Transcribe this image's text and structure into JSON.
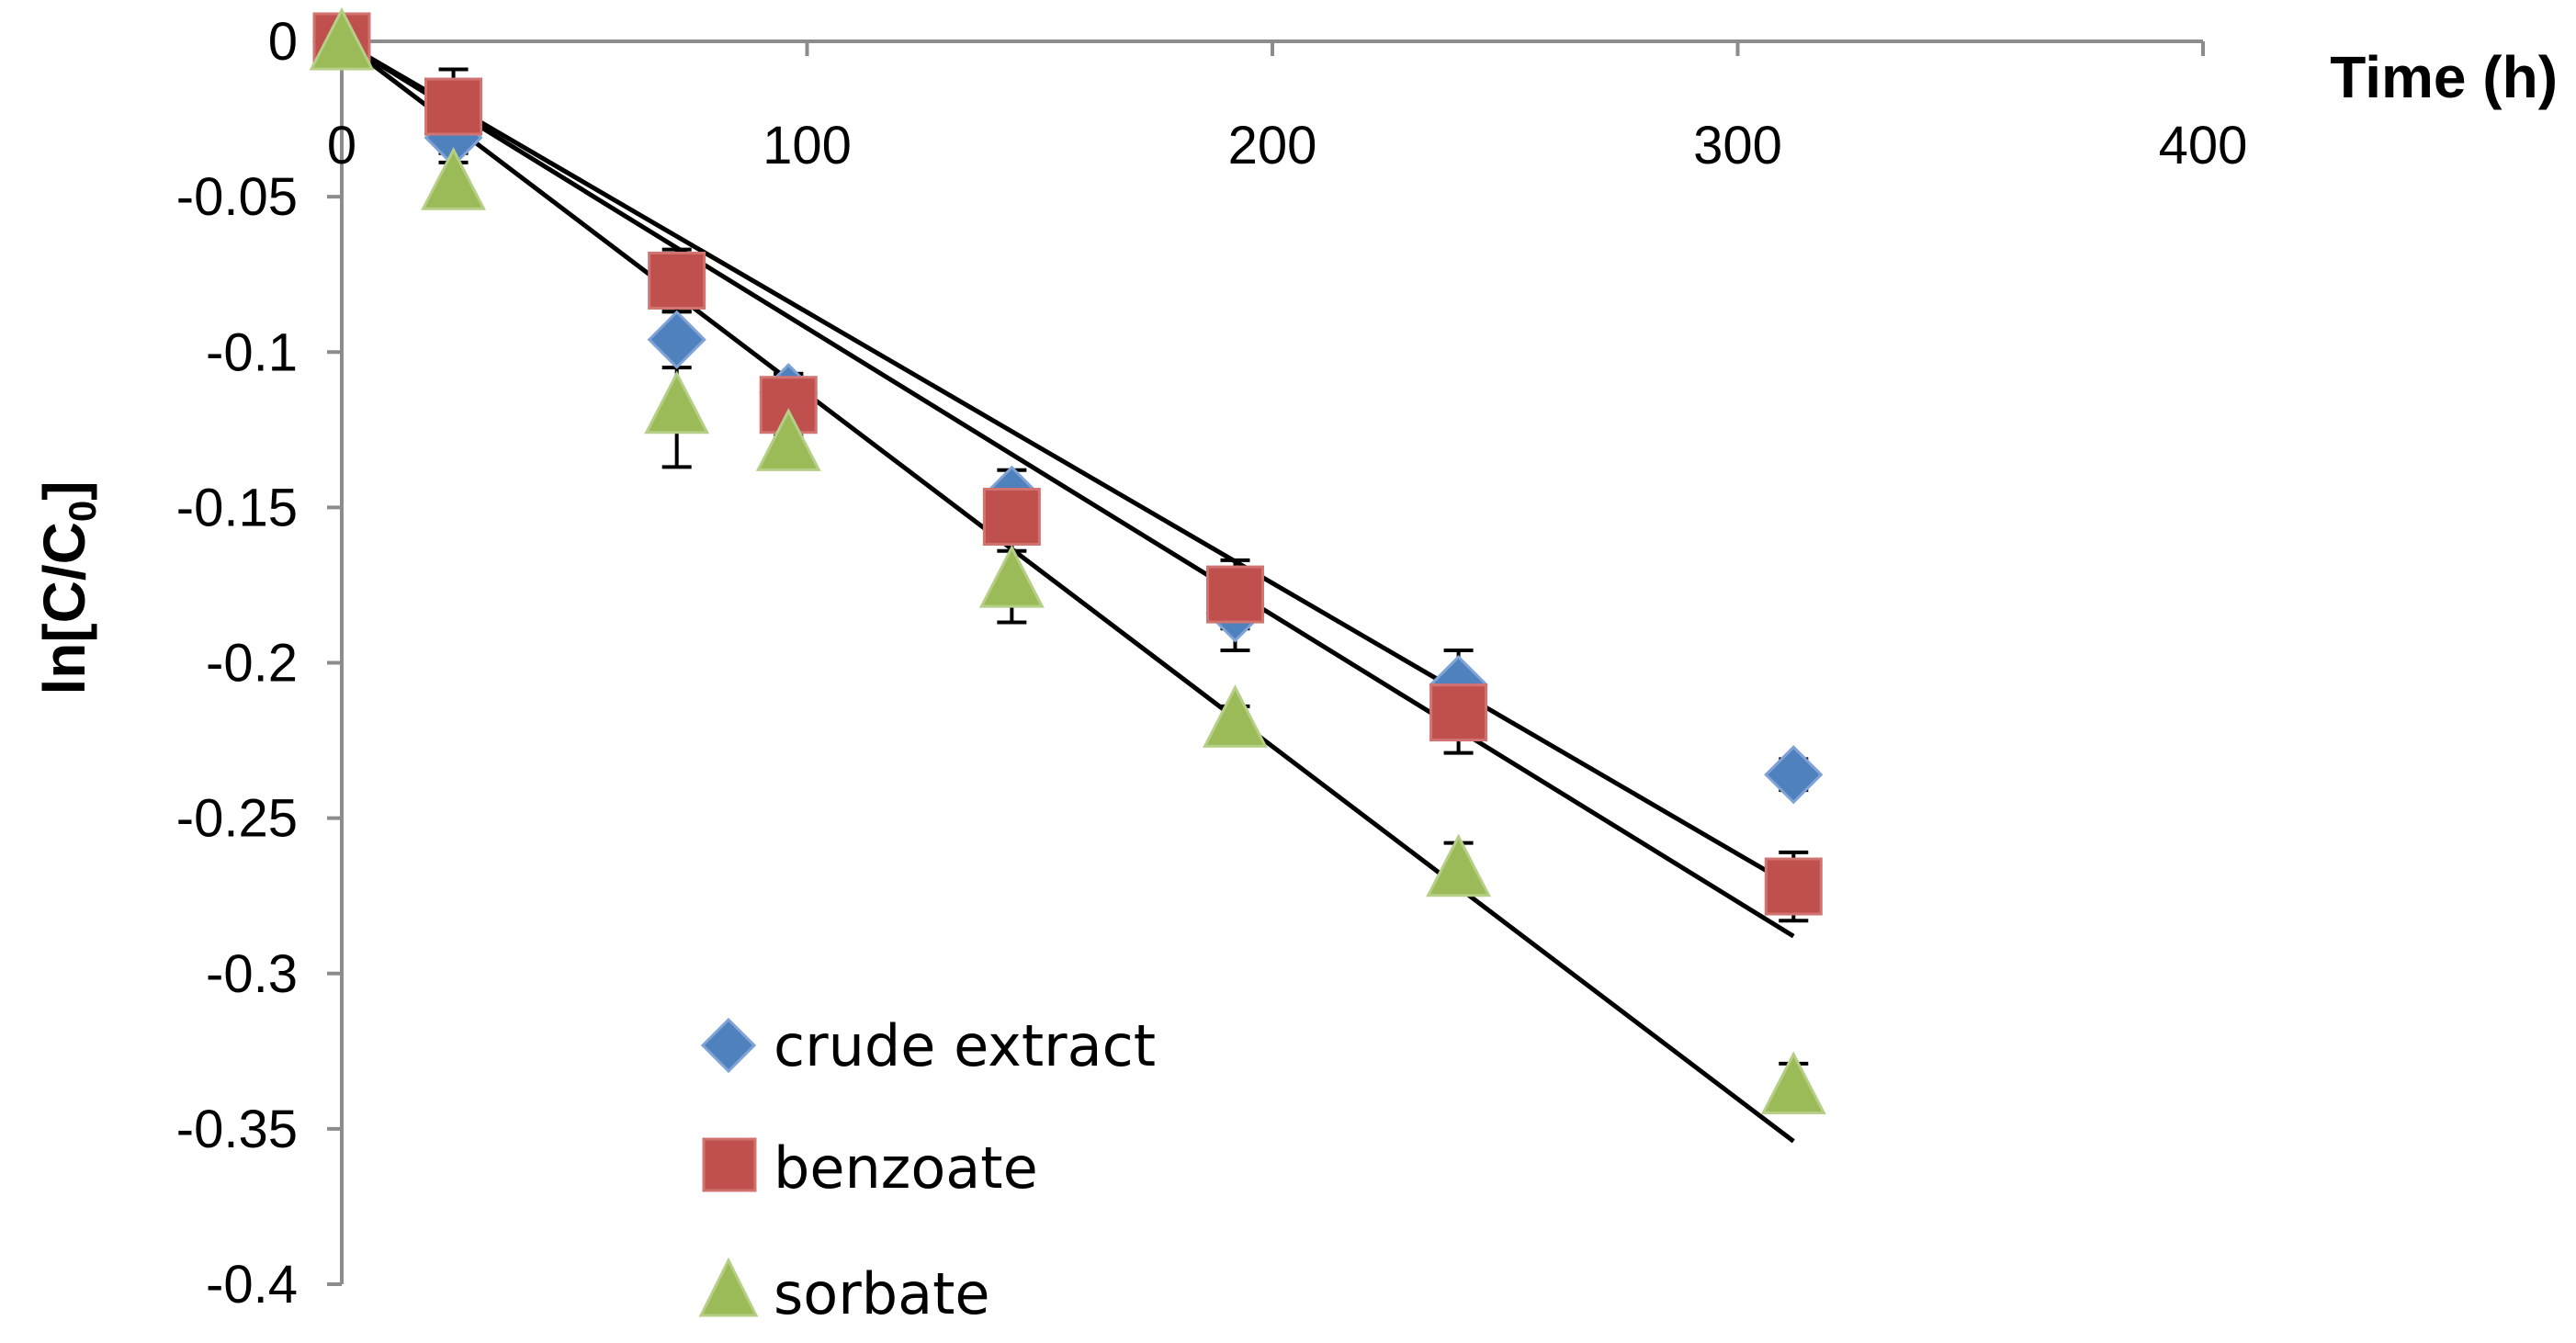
{
  "chart_data": {
    "type": "scatter",
    "xlabel": "Time (h)",
    "ylabel_main": "ln[C/C",
    "ylabel_sub": "0",
    "ylabel_end": "]",
    "xlim": [
      0,
      400
    ],
    "ylim": [
      -0.4,
      0
    ],
    "x_ticks": [
      0,
      100,
      200,
      300,
      400
    ],
    "y_ticks": [
      0,
      -0.05,
      -0.1,
      -0.15,
      -0.2,
      -0.25,
      -0.3,
      -0.35,
      -0.4
    ],
    "x_tick_labels": [
      "0",
      "100",
      "200",
      "300",
      "400"
    ],
    "y_tick_labels": [
      "0",
      "-0.05",
      "-0.1",
      "-0.15",
      "-0.2",
      "-0.25",
      "-0.3",
      "-0.35",
      "-0.4"
    ],
    "grid": false,
    "legend_position": "bottom-left",
    "series": [
      {
        "name": "crude extract",
        "marker": "diamond",
        "color": "#4f81bd",
        "points": [
          {
            "x": 0,
            "y": 0,
            "err": 0
          },
          {
            "x": 24,
            "y": -0.031,
            "err": 0.005
          },
          {
            "x": 72,
            "y": -0.096,
            "err": 0.009
          },
          {
            "x": 96,
            "y": -0.113,
            "err": 0.006
          },
          {
            "x": 144,
            "y": -0.146,
            "err": 0.008
          },
          {
            "x": 192,
            "y": -0.184,
            "err": 0.012
          },
          {
            "x": 240,
            "y": -0.207,
            "err": 0.011
          },
          {
            "x": 312,
            "y": -0.236,
            "err": 0.005
          }
        ],
        "fit": {
          "x0": 0,
          "y0": 0,
          "x1": 312,
          "y1": -0.272
        }
      },
      {
        "name": "benzoate",
        "marker": "square",
        "color": "#c0504d",
        "points": [
          {
            "x": 0,
            "y": 0,
            "err": 0
          },
          {
            "x": 24,
            "y": -0.021,
            "err": 0.012
          },
          {
            "x": 72,
            "y": -0.077,
            "err": 0.01
          },
          {
            "x": 96,
            "y": -0.117,
            "err": 0.01
          },
          {
            "x": 144,
            "y": -0.153,
            "err": 0.011
          },
          {
            "x": 192,
            "y": -0.178,
            "err": 0.011
          },
          {
            "x": 240,
            "y": -0.216,
            "err": 0.013
          },
          {
            "x": 312,
            "y": -0.272,
            "err": 0.011
          }
        ],
        "fit": {
          "x0": 0,
          "y0": 0,
          "x1": 312,
          "y1": -0.288
        }
      },
      {
        "name": "sorbate",
        "marker": "triangle",
        "color": "#9bbb59",
        "points": [
          {
            "x": 0,
            "y": 0,
            "err": 0
          },
          {
            "x": 24,
            "y": -0.045,
            "err": 0.006
          },
          {
            "x": 72,
            "y": -0.117,
            "err": 0.02
          },
          {
            "x": 96,
            "y": -0.129,
            "err": 0.006
          },
          {
            "x": 144,
            "y": -0.173,
            "err": 0.014
          },
          {
            "x": 192,
            "y": -0.218,
            "err": 0.004
          },
          {
            "x": 240,
            "y": -0.266,
            "err": 0.008
          },
          {
            "x": 312,
            "y": -0.336,
            "err": 0.007
          }
        ],
        "fit": {
          "x0": 0,
          "y0": 0,
          "x1": 312,
          "y1": -0.354
        }
      }
    ]
  }
}
